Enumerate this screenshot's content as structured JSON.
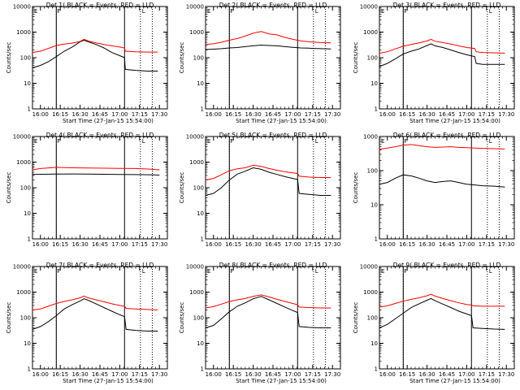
{
  "colors": {
    "events": "#000000",
    "lld": "#ff0000",
    "background": "#ffffff"
  },
  "chart_data": [
    {
      "type": "line",
      "title": "Det 1(,BLACK = Events, RED = LLD",
      "xlabel": "Start Time (27-Jan-15 15:54:00)",
      "ylabel": "Counts/sec",
      "xtick_labels": [
        "16:00",
        "16:15",
        "16:30",
        "16:45",
        "17:00",
        "17:15",
        "17:30"
      ],
      "xtick_values": [
        16.0,
        16.25,
        16.5,
        16.75,
        17.0,
        17.25,
        17.5
      ],
      "xlim": [
        15.9,
        17.6
      ],
      "ytick_labels": [
        "1",
        "10",
        "100",
        "1000",
        "10000"
      ],
      "ylim": [
        1,
        10000
      ],
      "ylog": true,
      "vlines_solid": [
        16.2,
        17.06
      ],
      "vlines_dotted": [
        16.2,
        17.26,
        17.41
      ],
      "markers": [
        {
          "x": 15.92,
          "text": "E"
        },
        {
          "x": 16.21,
          "text": "F"
        },
        {
          "x": 17.28,
          "text": "L"
        }
      ],
      "x": [
        15.9,
        16.0,
        16.1,
        16.2,
        16.3,
        16.4,
        16.5,
        16.55,
        16.6,
        16.7,
        16.8,
        16.9,
        17.0,
        17.06,
        17.07,
        17.2,
        17.35,
        17.48
      ],
      "series": [
        {
          "name": "Events",
          "values": [
            40,
            50,
            70,
            110,
            180,
            260,
            420,
            480,
            420,
            330,
            240,
            160,
            120,
            100,
            35,
            32,
            30,
            30
          ]
        },
        {
          "name": "LLD",
          "values": [
            160,
            180,
            230,
            300,
            340,
            370,
            430,
            520,
            450,
            380,
            330,
            290,
            260,
            240,
            180,
            170,
            165,
            165
          ]
        }
      ]
    },
    {
      "type": "line",
      "title": "Det 2(,BLACK = Events, RED = LLD",
      "xlabel": "Start Time (27-Jan-15 15:54:00)",
      "ylabel": "Counts/sec",
      "xtick_labels": [
        "16:00",
        "16:15",
        "16:30",
        "16:45",
        "17:00",
        "17:15",
        "17:30"
      ],
      "xtick_values": [
        16.0,
        16.25,
        16.5,
        16.75,
        17.0,
        17.25,
        17.5
      ],
      "xlim": [
        15.9,
        17.6
      ],
      "ytick_labels": [
        "1",
        "10",
        "100",
        "1000",
        "10000"
      ],
      "ylim": [
        1,
        10000
      ],
      "ylog": true,
      "vlines_solid": [
        16.2,
        17.06
      ],
      "vlines_dotted": [
        16.2,
        17.26,
        17.41
      ],
      "markers": [
        {
          "x": 15.92,
          "text": "E"
        },
        {
          "x": 16.21,
          "text": "F"
        },
        {
          "x": 17.28,
          "text": "L"
        }
      ],
      "x": [
        15.9,
        16.0,
        16.1,
        16.2,
        16.3,
        16.4,
        16.5,
        16.6,
        16.7,
        16.8,
        16.9,
        17.0,
        17.1,
        17.2,
        17.35,
        17.48
      ],
      "series": [
        {
          "name": "Events",
          "values": [
            210,
            215,
            225,
            240,
            250,
            270,
            290,
            310,
            300,
            290,
            270,
            255,
            240,
            235,
            225,
            220
          ]
        },
        {
          "name": "LLD",
          "values": [
            330,
            350,
            400,
            480,
            560,
            700,
            900,
            1050,
            850,
            780,
            620,
            520,
            450,
            420,
            390,
            380
          ]
        }
      ]
    },
    {
      "type": "line",
      "title": "Det 3(,BLACK = Events, RED = LLD",
      "xlabel": "Start Time (27-Jan-15 15:54:00)",
      "ylabel": "Counts/sec",
      "xtick_labels": [
        "16:00",
        "16:15",
        "16:30",
        "16:45",
        "17:00",
        "17:15",
        "17:30"
      ],
      "xtick_values": [
        16.0,
        16.25,
        16.5,
        16.75,
        17.0,
        17.25,
        17.5
      ],
      "xlim": [
        15.9,
        17.6
      ],
      "ytick_labels": [
        "1",
        "10",
        "100",
        "1000",
        "10000"
      ],
      "ylim": [
        1,
        10000
      ],
      "ylog": true,
      "vlines_solid": [
        16.2,
        17.06
      ],
      "vlines_dotted": [
        16.2,
        17.26,
        17.41
      ],
      "markers": [
        {
          "x": 15.92,
          "text": "E"
        },
        {
          "x": 16.21,
          "text": "F"
        },
        {
          "x": 17.28,
          "text": "L"
        }
      ],
      "x": [
        15.9,
        16.0,
        16.1,
        16.2,
        16.3,
        16.4,
        16.5,
        16.55,
        16.6,
        16.7,
        16.8,
        16.9,
        17.0,
        17.1,
        17.12,
        17.2,
        17.35,
        17.48
      ],
      "series": [
        {
          "name": "Events",
          "values": [
            45,
            60,
            90,
            140,
            180,
            220,
            300,
            350,
            290,
            250,
            200,
            160,
            130,
            110,
            60,
            55,
            55,
            55
          ]
        },
        {
          "name": "LLD",
          "values": [
            150,
            170,
            220,
            280,
            330,
            380,
            450,
            520,
            440,
            390,
            340,
            290,
            250,
            230,
            170,
            160,
            155,
            150
          ]
        }
      ]
    },
    {
      "type": "line",
      "title": "Det 4(,BLACK = Events, RED = LLD",
      "xlabel": "",
      "ylabel": "Counts/sec",
      "xtick_labels": [
        "16:00",
        "16:15",
        "16:30",
        "16:45",
        "17:00",
        "17:15",
        "17:30"
      ],
      "xtick_values": [
        16.0,
        16.25,
        16.5,
        16.75,
        17.0,
        17.25,
        17.5
      ],
      "xlim": [
        15.9,
        17.6
      ],
      "ytick_labels": [
        "1",
        "10",
        "100",
        "1000",
        "10000"
      ],
      "ylim": [
        1,
        10000
      ],
      "ylog": true,
      "vlines_solid": [
        16.2,
        17.06
      ],
      "vlines_dotted": [
        16.2,
        17.26,
        17.41
      ],
      "markers": [
        {
          "x": 15.92,
          "text": "E"
        },
        {
          "x": 16.21,
          "text": "F"
        },
        {
          "x": 17.28,
          "text": "L"
        }
      ],
      "x": [
        15.9,
        16.0,
        16.2,
        16.4,
        16.6,
        16.8,
        17.0,
        17.2,
        17.4,
        17.5
      ],
      "series": [
        {
          "name": "Events",
          "values": [
            330,
            335,
            340,
            345,
            340,
            335,
            330,
            325,
            320,
            310
          ]
        },
        {
          "name": "LLD",
          "values": [
            500,
            560,
            620,
            600,
            590,
            580,
            570,
            560,
            530,
            500
          ]
        }
      ]
    },
    {
      "type": "line",
      "title": "Det 5(,BLACK = Events, RED = LLD",
      "xlabel": "",
      "ylabel": "Counts/sec",
      "xtick_labels": [
        "16:00",
        "16:15",
        "16:30",
        "16:45",
        "17:00",
        "17:15",
        "17:30"
      ],
      "xtick_values": [
        16.0,
        16.25,
        16.5,
        16.75,
        17.0,
        17.25,
        17.5
      ],
      "xlim": [
        15.9,
        17.6
      ],
      "ytick_labels": [
        "1",
        "10",
        "100",
        "1000",
        "10000"
      ],
      "ylim": [
        1,
        10000
      ],
      "ylog": true,
      "vlines_solid": [
        16.2,
        17.06
      ],
      "vlines_dotted": [
        16.2,
        17.26,
        17.41
      ],
      "markers": [
        {
          "x": 15.92,
          "text": "E"
        },
        {
          "x": 16.21,
          "text": "F"
        },
        {
          "x": 17.28,
          "text": "L"
        }
      ],
      "x": [
        15.9,
        16.0,
        16.1,
        16.2,
        16.3,
        16.4,
        16.5,
        16.6,
        16.7,
        16.8,
        16.9,
        17.0,
        17.06,
        17.08,
        17.2,
        17.35,
        17.48
      ],
      "series": [
        {
          "name": "Events",
          "values": [
            50,
            60,
            100,
            200,
            340,
            440,
            600,
            520,
            400,
            330,
            270,
            230,
            210,
            60,
            55,
            50,
            50
          ]
        },
        {
          "name": "LLD",
          "values": [
            200,
            230,
            320,
            460,
            550,
            600,
            750,
            680,
            560,
            480,
            420,
            380,
            360,
            280,
            260,
            250,
            250
          ]
        }
      ]
    },
    {
      "type": "line",
      "title": "Det 6(,BLACK = Events, RED = LLD",
      "xlabel": "",
      "ylabel": "Counts/sec",
      "xtick_labels": [
        "16:00",
        "16:15",
        "16:30",
        "16:45",
        "17:00",
        "17:15",
        "17:30"
      ],
      "xtick_values": [
        16.0,
        16.25,
        16.5,
        16.75,
        17.0,
        17.25,
        17.5
      ],
      "xlim": [
        15.9,
        17.6
      ],
      "ytick_labels": [
        "1",
        "10",
        "100",
        "1000"
      ],
      "ylim": [
        1,
        1000
      ],
      "ylog": true,
      "vlines_solid": [
        16.2,
        17.06
      ],
      "vlines_dotted": [
        16.2,
        17.26,
        17.41
      ],
      "markers": [
        {
          "x": 15.92,
          "text": "E"
        },
        {
          "x": 16.21,
          "text": "F"
        },
        {
          "x": 17.28,
          "text": "L"
        }
      ],
      "x": [
        15.9,
        16.0,
        16.1,
        16.2,
        16.3,
        16.4,
        16.5,
        16.6,
        16.7,
        16.8,
        16.9,
        17.0,
        17.1,
        17.2,
        17.35,
        17.48
      ],
      "series": [
        {
          "name": "Events",
          "values": [
            40,
            45,
            60,
            75,
            70,
            60,
            50,
            45,
            48,
            50,
            45,
            40,
            38,
            36,
            35,
            33
          ]
        },
        {
          "name": "LLD",
          "values": [
            420,
            460,
            500,
            560,
            580,
            540,
            500,
            480,
            490,
            500,
            480,
            470,
            460,
            450,
            440,
            430
          ]
        }
      ]
    },
    {
      "type": "line",
      "title": "Det 7(,BLACK = Events, RED = LLD",
      "xlabel": "Start Time (27-Jan-15 15:54:00)",
      "ylabel": "Counts/sec",
      "xtick_labels": [
        "16:00",
        "16:15",
        "16:30",
        "16:45",
        "17:00",
        "17:15",
        "17:30"
      ],
      "xtick_values": [
        16.0,
        16.25,
        16.5,
        16.75,
        17.0,
        17.25,
        17.5
      ],
      "xlim": [
        15.9,
        17.6
      ],
      "ytick_labels": [
        "1",
        "10",
        "100",
        "1000",
        "10000"
      ],
      "ylim": [
        1,
        10000
      ],
      "ylog": true,
      "vlines_solid": [
        16.2,
        17.06
      ],
      "vlines_dotted": [
        16.2,
        17.26,
        17.41
      ],
      "markers": [
        {
          "x": 15.92,
          "text": "E"
        },
        {
          "x": 16.21,
          "text": "F"
        },
        {
          "x": 17.28,
          "text": "L"
        }
      ],
      "x": [
        15.9,
        16.0,
        16.1,
        16.2,
        16.3,
        16.4,
        16.5,
        16.55,
        16.6,
        16.7,
        16.8,
        16.9,
        17.0,
        17.06,
        17.08,
        17.2,
        17.35,
        17.48
      ],
      "series": [
        {
          "name": "Events",
          "values": [
            35,
            45,
            70,
            120,
            220,
            320,
            450,
            550,
            480,
            350,
            250,
            180,
            130,
            110,
            35,
            32,
            30,
            30
          ]
        },
        {
          "name": "LLD",
          "values": [
            200,
            220,
            280,
            360,
            430,
            500,
            600,
            700,
            600,
            500,
            420,
            350,
            300,
            280,
            230,
            220,
            210,
            200
          ]
        }
      ]
    },
    {
      "type": "line",
      "title": "Det 8(,BLACK = Events, RED = LLD",
      "xlabel": "Start Time (27-Jan-15 15:54:00)",
      "ylabel": "Counts/sec",
      "xtick_labels": [
        "16:00",
        "16:15",
        "16:30",
        "16:45",
        "17:00",
        "17:15",
        "17:30"
      ],
      "xtick_values": [
        16.0,
        16.25,
        16.5,
        16.75,
        17.0,
        17.25,
        17.5
      ],
      "xlim": [
        15.9,
        17.6
      ],
      "ytick_labels": [
        "1",
        "10",
        "100",
        "1000",
        "10000"
      ],
      "ylim": [
        1,
        10000
      ],
      "ylog": true,
      "vlines_solid": [
        16.2,
        17.06
      ],
      "vlines_dotted": [
        16.2,
        17.26,
        17.41
      ],
      "markers": [
        {
          "x": 15.92,
          "text": "E"
        },
        {
          "x": 16.21,
          "text": "F"
        },
        {
          "x": 17.28,
          "text": "L"
        }
      ],
      "x": [
        15.9,
        16.0,
        16.1,
        16.2,
        16.3,
        16.4,
        16.5,
        16.6,
        16.7,
        16.8,
        16.9,
        17.0,
        17.06,
        17.08,
        17.2,
        17.35,
        17.48
      ],
      "series": [
        {
          "name": "Events",
          "values": [
            40,
            50,
            90,
            170,
            280,
            380,
            550,
            680,
            500,
            360,
            260,
            190,
            160,
            45,
            42,
            40,
            40
          ]
        },
        {
          "name": "LLD",
          "values": [
            240,
            270,
            340,
            430,
            500,
            560,
            680,
            780,
            650,
            520,
            430,
            360,
            320,
            260,
            250,
            240,
            240
          ]
        }
      ]
    },
    {
      "type": "line",
      "title": "Det 9(,BLACK = Events, RED = LLD",
      "xlabel": "Start Time (27-Jan-15 15:54:00)",
      "ylabel": "Counts/sec",
      "xtick_labels": [
        "16:00",
        "16:15",
        "16:30",
        "16:45",
        "17:00",
        "17:15",
        "17:30"
      ],
      "xtick_values": [
        16.0,
        16.25,
        16.5,
        16.75,
        17.0,
        17.25,
        17.5
      ],
      "xlim": [
        15.9,
        17.6
      ],
      "ytick_labels": [
        "1",
        "10",
        "100",
        "1000",
        "10000"
      ],
      "ylim": [
        1,
        10000
      ],
      "ylog": true,
      "vlines_solid": [
        16.2,
        17.06
      ],
      "vlines_dotted": [
        16.2,
        17.26,
        17.41
      ],
      "markers": [
        {
          "x": 15.92,
          "text": "E"
        },
        {
          "x": 16.21,
          "text": "F"
        },
        {
          "x": 17.28,
          "text": "L"
        }
      ],
      "x": [
        15.9,
        16.0,
        16.1,
        16.2,
        16.3,
        16.4,
        16.5,
        16.55,
        16.6,
        16.7,
        16.8,
        16.9,
        17.0,
        17.06,
        17.08,
        17.2,
        17.35,
        17.48
      ],
      "series": [
        {
          "name": "Events",
          "values": [
            40,
            55,
            90,
            150,
            250,
            350,
            480,
            560,
            460,
            340,
            250,
            180,
            140,
            120,
            40,
            38,
            36,
            35
          ]
        },
        {
          "name": "LLD",
          "values": [
            260,
            290,
            360,
            440,
            520,
            600,
            720,
            820,
            700,
            560,
            460,
            380,
            330,
            310,
            290,
            280,
            280,
            280
          ]
        }
      ]
    }
  ]
}
